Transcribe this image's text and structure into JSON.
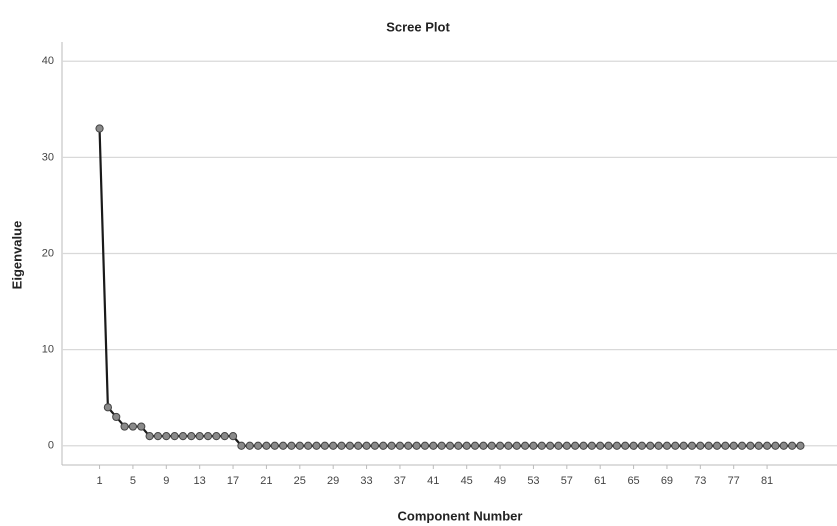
{
  "chart_data": {
    "type": "line",
    "title": "Scree Plot",
    "x_label": "Component Number",
    "y_label": "Eigenvalue",
    "x": [
      1,
      2,
      3,
      4,
      5,
      6,
      7,
      8,
      9,
      10,
      11,
      12,
      13,
      14,
      15,
      16,
      17,
      18,
      19,
      20,
      21,
      22,
      23,
      24,
      25,
      26,
      27,
      28,
      29,
      30,
      31,
      32,
      33,
      34,
      35,
      36,
      37,
      38,
      39,
      40,
      41,
      42,
      43,
      44,
      45,
      46,
      47,
      48,
      49,
      50,
      51,
      52,
      53,
      54,
      55,
      56,
      57,
      58,
      59,
      60,
      61,
      62,
      63,
      64,
      65,
      66,
      67,
      68,
      69,
      70,
      71,
      72,
      73,
      74,
      75,
      76,
      77,
      78,
      79,
      80,
      81,
      82,
      83,
      84,
      85
    ],
    "series": [
      {
        "name": "Eigenvalue",
        "color": "#1a1a1a",
        "values": [
          33,
          4,
          3,
          2,
          2,
          2,
          1,
          1,
          1,
          1,
          1,
          1,
          1,
          1,
          1,
          1,
          1,
          0,
          0,
          0,
          0,
          0,
          0,
          0,
          0,
          0,
          0,
          0,
          0,
          0,
          0,
          0,
          0,
          0,
          0,
          0,
          0,
          0,
          0,
          0,
          0,
          0,
          0,
          0,
          0,
          0,
          0,
          0,
          0,
          0,
          0,
          0,
          0,
          0,
          0,
          0,
          0,
          0,
          0,
          0,
          0,
          0,
          0,
          0,
          0,
          0,
          0,
          0,
          0,
          0,
          0,
          0,
          0,
          0,
          0,
          0,
          0,
          0,
          0,
          0,
          0,
          0,
          0,
          0,
          0
        ]
      }
    ],
    "xlim": [
      -3.5,
      89.5
    ],
    "ylim": [
      -2,
      42
    ],
    "xticks": [
      1,
      5,
      9,
      13,
      17,
      21,
      25,
      29,
      33,
      37,
      41,
      45,
      49,
      53,
      57,
      61,
      65,
      69,
      73,
      77,
      81
    ],
    "yticks": [
      0,
      10,
      20,
      30,
      40
    ],
    "grid": true
  }
}
